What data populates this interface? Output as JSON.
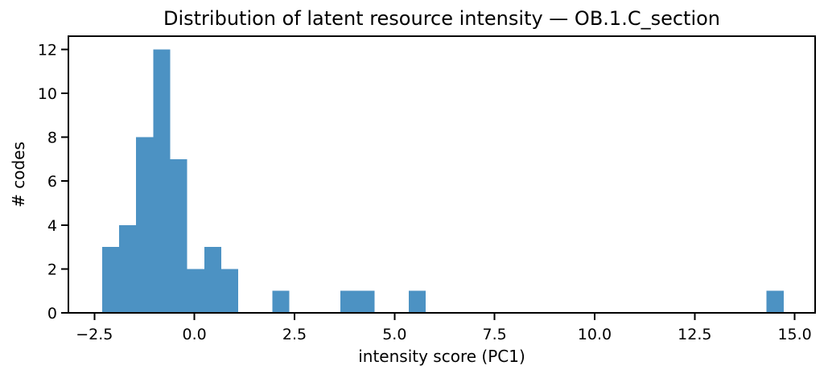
{
  "chart_data": {
    "type": "histogram",
    "title": "Distribution of latent resource intensity — OB.1.C_section",
    "xlabel": "intensity score (PC1)",
    "ylabel": "# codes",
    "bar_color": "#4C92C3",
    "background_color": "#FFFFFF",
    "spine_color": "#000000",
    "grid": false,
    "legend": null,
    "xlim": [
      -3.15,
      15.51
    ],
    "ylim": [
      0,
      12.6
    ],
    "bins": {
      "start": -2.31,
      "width": 0.4258,
      "counts": [
        3,
        4,
        8,
        12,
        7,
        2,
        3,
        2,
        0,
        0,
        1,
        0,
        0,
        0,
        1,
        1,
        0,
        0,
        1,
        0,
        0,
        0,
        0,
        0,
        0,
        0,
        0,
        0,
        0,
        0,
        0,
        0,
        0,
        0,
        0,
        0,
        0,
        0,
        0,
        1
      ]
    },
    "total_count": 46,
    "xticks": [
      {
        "v": -2.5,
        "label": "−2.5"
      },
      {
        "v": 0.0,
        "label": "0.0"
      },
      {
        "v": 2.5,
        "label": "2.5"
      },
      {
        "v": 5.0,
        "label": "5.0"
      },
      {
        "v": 7.5,
        "label": "7.5"
      },
      {
        "v": 10.0,
        "label": "10.0"
      },
      {
        "v": 12.5,
        "label": "12.5"
      },
      {
        "v": 15.0,
        "label": "15.0"
      }
    ],
    "yticks": [
      {
        "v": 0,
        "label": "0"
      },
      {
        "v": 2,
        "label": "2"
      },
      {
        "v": 4,
        "label": "4"
      },
      {
        "v": 6,
        "label": "6"
      },
      {
        "v": 8,
        "label": "8"
      },
      {
        "v": 10,
        "label": "10"
      },
      {
        "v": 12,
        "label": "12"
      }
    ]
  }
}
